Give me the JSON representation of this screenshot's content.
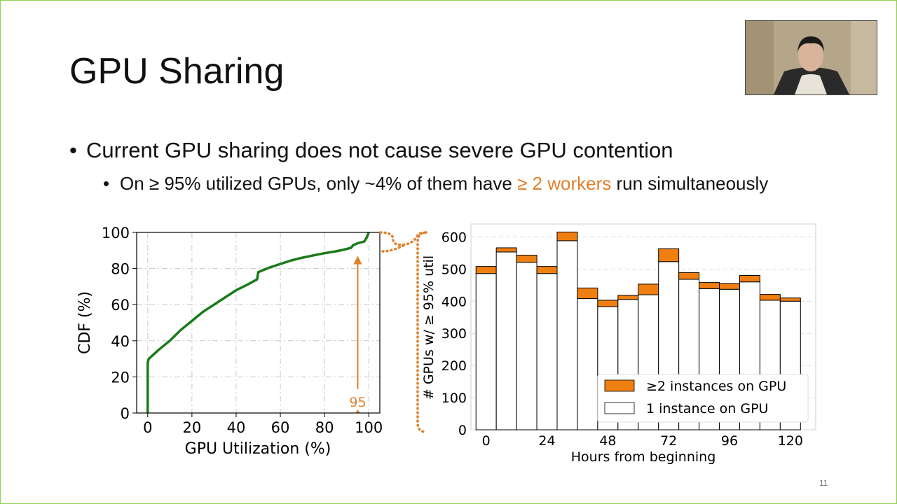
{
  "slide": {
    "title": "GPU Sharing",
    "bullet1": "Current GPU sharing does not cause severe GPU contention",
    "bullet2_pre": "On ≥ 95% utilized GPUs, only ~4% of them have ",
    "bullet2_highlight": "≥ 2 workers",
    "bullet2_post": " run simultaneously",
    "bullet_marker": "•",
    "slide_number": "11",
    "accent_color": "#e0802b",
    "border_color": "#8fd14f"
  },
  "chart_data": [
    {
      "type": "line",
      "xlabel": "GPU Utilization (%)",
      "ylabel": "CDF (%)",
      "xlim": [
        -5,
        105
      ],
      "ylim": [
        0,
        100
      ],
      "xticks": [
        "0",
        "20",
        "40",
        "60",
        "80",
        "100"
      ],
      "yticks": [
        "0",
        "20",
        "40",
        "60",
        "80",
        "100"
      ],
      "grid": true,
      "series": [
        {
          "color": "#1a7a1a",
          "x": [
            0,
            0,
            0.5,
            5,
            10,
            15,
            20,
            25,
            30,
            35,
            40,
            45,
            49.5,
            50,
            55,
            60,
            65,
            70,
            75,
            80,
            85,
            89,
            92,
            93,
            95,
            98,
            99,
            100
          ],
          "y": [
            0,
            28,
            30,
            35,
            40,
            46,
            51,
            56,
            60,
            64,
            68,
            71,
            74,
            78,
            80.5,
            82.5,
            84.5,
            86,
            87.3,
            88.5,
            89.5,
            90.5,
            91.5,
            93,
            94,
            95,
            97,
            100
          ]
        }
      ],
      "annotation": {
        "text": "95",
        "x": 95,
        "y_from": 0,
        "y_to": 87
      }
    },
    {
      "type": "bar",
      "stacked": true,
      "xlabel": "Hours from beginning",
      "ylabel": "# GPUs w/ ≥ 95% util",
      "ylim": [
        0,
        640
      ],
      "xticks": [
        "0",
        "24",
        "48",
        "72",
        "96",
        "120"
      ],
      "yticks": [
        "0",
        "100",
        "200",
        "300",
        "400",
        "500",
        "600"
      ],
      "grid": true,
      "legend_position": "bottom-right",
      "categories": [
        0,
        8,
        16,
        24,
        32,
        40,
        48,
        56,
        64,
        72,
        80,
        88,
        96,
        104,
        112,
        120
      ],
      "series": [
        {
          "name": "1 instance on GPU",
          "color": "#ffffff",
          "values": [
            486,
            553,
            521,
            486,
            588,
            408,
            383,
            405,
            420,
            523,
            468,
            439,
            437,
            460,
            403,
            400
          ]
        },
        {
          "name": "≥2 instances on GPU",
          "color": "#f07f12",
          "values": [
            22,
            13,
            22,
            22,
            27,
            33,
            20,
            13,
            33,
            40,
            21,
            19,
            18,
            20,
            18,
            10
          ]
        }
      ]
    }
  ]
}
